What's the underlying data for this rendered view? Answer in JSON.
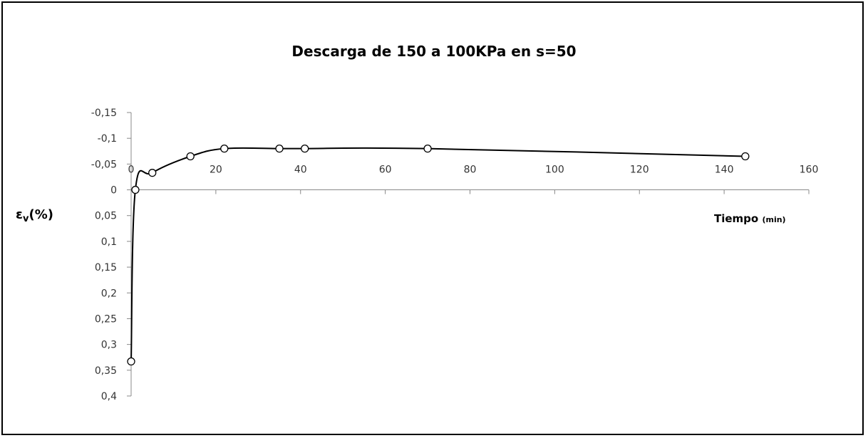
{
  "chart_data": {
    "type": "line",
    "title": "Descarga de 150 a 100KPa en s=50",
    "ylabel_main": "ε",
    "ylabel_sub": "v",
    "ylabel_suffix": "(%)",
    "xlabel_main": "Tiempo",
    "xlabel_unit": "(min)",
    "xlim": [
      0,
      160
    ],
    "ylim": [
      -0.15,
      0.4
    ],
    "y_inverted": true,
    "x_ticks": [
      0,
      20,
      40,
      60,
      80,
      100,
      120,
      140,
      160
    ],
    "x_tick_labels": [
      "0",
      "20",
      "40",
      "60",
      "80",
      "100",
      "120",
      "140",
      "160"
    ],
    "y_ticks": [
      -0.15,
      -0.1,
      -0.05,
      0,
      0.05,
      0.1,
      0.15,
      0.2,
      0.25,
      0.3,
      0.35,
      0.4
    ],
    "y_tick_labels": [
      "-0,15",
      "-0,1",
      "-0,05",
      "0",
      "0,05",
      "0,1",
      "0,15",
      "0,2",
      "0,25",
      "0,3",
      "0,35",
      "0,4"
    ],
    "grid": false,
    "series": [
      {
        "x": [
          0,
          1,
          5,
          14,
          22,
          35,
          41,
          70,
          145
        ],
        "y": [
          0.333,
          0,
          -0.033,
          -0.065,
          -0.08,
          -0.08,
          -0.08,
          -0.08,
          -0.065
        ]
      }
    ],
    "line_color": "#000000",
    "marker": "open-circle"
  }
}
